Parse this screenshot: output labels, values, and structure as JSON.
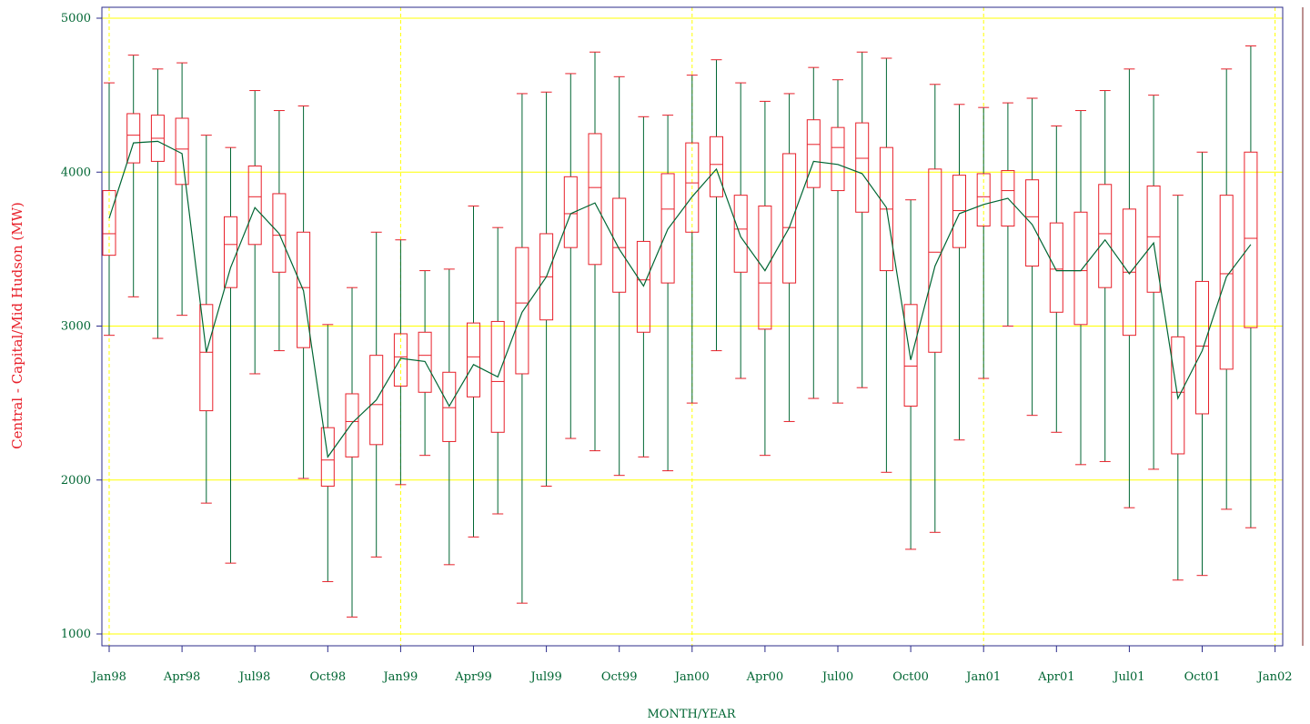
{
  "chart_data": {
    "type": "box",
    "xlabel": "MONTH/YEAR",
    "ylabel": "Central - Capital/Mid Hudson (MW)",
    "ylim": [
      1000,
      5000
    ],
    "y_ticks": [
      "1000",
      "2000",
      "3000",
      "4000",
      "5000"
    ],
    "x_ticks": [
      "Jan98",
      "Apr98",
      "Jul98",
      "Oct98",
      "Jan99",
      "Apr99",
      "Jul99",
      "Oct99",
      "Jan00",
      "Apr00",
      "Jul00",
      "Oct00",
      "Jan01",
      "Apr01",
      "Jul01",
      "Oct01",
      "Jan02"
    ],
    "grid": true,
    "colors": {
      "box": "#e8202a",
      "whisker": "#006633",
      "mean_line": "#006633",
      "grid": "#ffff00",
      "frame": "#2b2b8a"
    },
    "months": [
      {
        "month": "Jan98",
        "min": 2940,
        "q1": 3460,
        "median": 3600,
        "q3": 3880,
        "max": 4580,
        "mean": 3700
      },
      {
        "month": "Feb98",
        "min": 3190,
        "q1": 4060,
        "median": 4240,
        "q3": 4380,
        "max": 4760,
        "mean": 4190
      },
      {
        "month": "Mar98",
        "min": 2920,
        "q1": 4070,
        "median": 4220,
        "q3": 4370,
        "max": 4670,
        "mean": 4200
      },
      {
        "month": "Apr98",
        "min": 3070,
        "q1": 3920,
        "median": 4150,
        "q3": 4350,
        "max": 4710,
        "mean": 4120
      },
      {
        "month": "May98",
        "min": 1850,
        "q1": 2450,
        "median": 2830,
        "q3": 3140,
        "max": 4240,
        "mean": 2830
      },
      {
        "month": "Jun98",
        "min": 1460,
        "q1": 3250,
        "median": 3530,
        "q3": 3710,
        "max": 4160,
        "mean": 3380
      },
      {
        "month": "Jul98",
        "min": 2690,
        "q1": 3530,
        "median": 3840,
        "q3": 4040,
        "max": 4530,
        "mean": 3770
      },
      {
        "month": "Aug98",
        "min": 2840,
        "q1": 3350,
        "median": 3590,
        "q3": 3860,
        "max": 4400,
        "mean": 3600
      },
      {
        "month": "Sep98",
        "min": 2010,
        "q1": 2860,
        "median": 3250,
        "q3": 3610,
        "max": 4430,
        "mean": 3230
      },
      {
        "month": "Oct98",
        "min": 1340,
        "q1": 1960,
        "median": 2130,
        "q3": 2340,
        "max": 3010,
        "mean": 2150
      },
      {
        "month": "Nov98",
        "min": 1110,
        "q1": 2150,
        "median": 2380,
        "q3": 2560,
        "max": 3250,
        "mean": 2370
      },
      {
        "month": "Dec98",
        "min": 1500,
        "q1": 2230,
        "median": 2490,
        "q3": 2810,
        "max": 3610,
        "mean": 2520
      },
      {
        "month": "Jan99",
        "min": 1970,
        "q1": 2610,
        "median": 2800,
        "q3": 2950,
        "max": 3560,
        "mean": 2790
      },
      {
        "month": "Feb99",
        "min": 2160,
        "q1": 2570,
        "median": 2810,
        "q3": 2960,
        "max": 3360,
        "mean": 2770
      },
      {
        "month": "Mar99",
        "min": 1450,
        "q1": 2250,
        "median": 2470,
        "q3": 2700,
        "max": 3370,
        "mean": 2480
      },
      {
        "month": "Apr99",
        "min": 1630,
        "q1": 2540,
        "median": 2800,
        "q3": 3020,
        "max": 3780,
        "mean": 2750
      },
      {
        "month": "May99",
        "min": 1780,
        "q1": 2310,
        "median": 2640,
        "q3": 3030,
        "max": 3640,
        "mean": 2670
      },
      {
        "month": "Jun99",
        "min": 1200,
        "q1": 2690,
        "median": 3150,
        "q3": 3510,
        "max": 4510,
        "mean": 3090
      },
      {
        "month": "Jul99",
        "min": 1960,
        "q1": 3040,
        "median": 3320,
        "q3": 3600,
        "max": 4520,
        "mean": 3320
      },
      {
        "month": "Aug99",
        "min": 2270,
        "q1": 3510,
        "median": 3730,
        "q3": 3970,
        "max": 4640,
        "mean": 3730
      },
      {
        "month": "Sep99",
        "min": 2190,
        "q1": 3400,
        "median": 3900,
        "q3": 4250,
        "max": 4780,
        "mean": 3800
      },
      {
        "month": "Oct99",
        "min": 2030,
        "q1": 3220,
        "median": 3510,
        "q3": 3830,
        "max": 4620,
        "mean": 3500
      },
      {
        "month": "Nov99",
        "min": 2150,
        "q1": 2960,
        "median": 3300,
        "q3": 3550,
        "max": 4360,
        "mean": 3260
      },
      {
        "month": "Dec99",
        "min": 2060,
        "q1": 3280,
        "median": 3760,
        "q3": 3990,
        "max": 4370,
        "mean": 3630
      },
      {
        "month": "Jan00",
        "min": 2500,
        "q1": 3610,
        "median": 3930,
        "q3": 4190,
        "max": 4630,
        "mean": 3840
      },
      {
        "month": "Feb00",
        "min": 2840,
        "q1": 3840,
        "median": 4050,
        "q3": 4230,
        "max": 4730,
        "mean": 4020
      },
      {
        "month": "Mar00",
        "min": 2660,
        "q1": 3350,
        "median": 3630,
        "q3": 3850,
        "max": 4580,
        "mean": 3580
      },
      {
        "month": "Apr00",
        "min": 2160,
        "q1": 2980,
        "median": 3280,
        "q3": 3780,
        "max": 4460,
        "mean": 3360
      },
      {
        "month": "May00",
        "min": 2380,
        "q1": 3280,
        "median": 3640,
        "q3": 4120,
        "max": 4510,
        "mean": 3640
      },
      {
        "month": "Jun00",
        "min": 2530,
        "q1": 3900,
        "median": 4180,
        "q3": 4340,
        "max": 4680,
        "mean": 4070
      },
      {
        "month": "Jul00",
        "min": 2500,
        "q1": 3880,
        "median": 4160,
        "q3": 4290,
        "max": 4600,
        "mean": 4050
      },
      {
        "month": "Aug00",
        "min": 2600,
        "q1": 3740,
        "median": 4090,
        "q3": 4320,
        "max": 4780,
        "mean": 3990
      },
      {
        "month": "Sep00",
        "min": 2050,
        "q1": 3360,
        "median": 3760,
        "q3": 4160,
        "max": 4740,
        "mean": 3770
      },
      {
        "month": "Oct00",
        "min": 1550,
        "q1": 2480,
        "median": 2740,
        "q3": 3140,
        "max": 3820,
        "mean": 2780
      },
      {
        "month": "Nov00",
        "min": 1660,
        "q1": 2830,
        "median": 3480,
        "q3": 4020,
        "max": 4570,
        "mean": 3390
      },
      {
        "month": "Dec00",
        "min": 2260,
        "q1": 3510,
        "median": 3750,
        "q3": 3980,
        "max": 4440,
        "mean": 3730
      },
      {
        "month": "Jan01",
        "min": 2660,
        "q1": 3650,
        "median": 3840,
        "q3": 3990,
        "max": 4420,
        "mean": 3790
      },
      {
        "month": "Feb01",
        "min": 3000,
        "q1": 3650,
        "median": 3880,
        "q3": 4010,
        "max": 4450,
        "mean": 3830
      },
      {
        "month": "Mar01",
        "min": 2420,
        "q1": 3390,
        "median": 3710,
        "q3": 3950,
        "max": 4480,
        "mean": 3660
      },
      {
        "month": "Apr01",
        "min": 2310,
        "q1": 3090,
        "median": 3370,
        "q3": 3670,
        "max": 4300,
        "mean": 3360
      },
      {
        "month": "May01",
        "min": 2100,
        "q1": 3010,
        "median": 3360,
        "q3": 3740,
        "max": 4400,
        "mean": 3360
      },
      {
        "month": "Jun01",
        "min": 2120,
        "q1": 3250,
        "median": 3600,
        "q3": 3920,
        "max": 4530,
        "mean": 3560
      },
      {
        "month": "Jul01",
        "min": 1820,
        "q1": 2940,
        "median": 3350,
        "q3": 3760,
        "max": 4670,
        "mean": 3340
      },
      {
        "month": "Aug01",
        "min": 2070,
        "q1": 3220,
        "median": 3580,
        "q3": 3910,
        "max": 4500,
        "mean": 3540
      },
      {
        "month": "Sep01",
        "min": 1350,
        "q1": 2170,
        "median": 2570,
        "q3": 2930,
        "max": 3850,
        "mean": 2530
      },
      {
        "month": "Oct01",
        "min": 1380,
        "q1": 2430,
        "median": 2870,
        "q3": 3290,
        "max": 4130,
        "mean": 2840
      },
      {
        "month": "Nov01",
        "min": 1810,
        "q1": 2720,
        "median": 3340,
        "q3": 3850,
        "max": 4670,
        "mean": 3320
      },
      {
        "month": "Dec01",
        "min": 1690,
        "q1": 2990,
        "median": 3570,
        "q3": 4130,
        "max": 4820,
        "mean": 3530
      }
    ]
  }
}
